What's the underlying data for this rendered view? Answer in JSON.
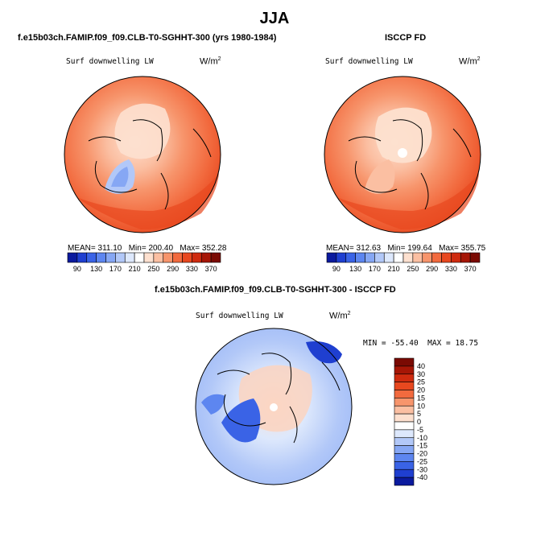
{
  "page": {
    "title": "JJA"
  },
  "chart_data": [
    {
      "type": "heatmap",
      "projection": "north-polar-stereographic",
      "title": "f.e15b03ch.FAMIP.f09_f09.CLB-T0-SGHHT-300 (yrs 1980-1984)",
      "variable": "Surf downwelling LW",
      "units": "W/m",
      "units_exponent": "2",
      "stats": {
        "mean_label": "MEAN=",
        "mean": "311.10",
        "min_label": "Min=",
        "min": "200.40",
        "max_label": "Max=",
        "max": "352.28"
      },
      "colorbar": {
        "orientation": "horizontal",
        "tick_labels": [
          "90",
          "130",
          "170",
          "210",
          "250",
          "290",
          "330",
          "370"
        ],
        "colors": [
          "#0b1a9e",
          "#1f3fd0",
          "#3a63e6",
          "#5d86f0",
          "#86a7f4",
          "#b2c8f8",
          "#dde8fc",
          "#ffffff",
          "#fde0cf",
          "#fbbfa2",
          "#f7956c",
          "#f26a3e",
          "#e8481f",
          "#cf2b0f",
          "#a61606",
          "#7a0a03"
        ]
      }
    },
    {
      "type": "heatmap",
      "projection": "north-polar-stereographic",
      "title": "ISCCP FD",
      "variable": "Surf downwelling LW",
      "units": "W/m",
      "units_exponent": "2",
      "stats": {
        "mean_label": "MEAN=",
        "mean": "312.63",
        "min_label": "Min=",
        "min": "199.64",
        "max_label": "Max=",
        "max": "355.75"
      },
      "colorbar": {
        "orientation": "horizontal",
        "tick_labels": [
          "90",
          "130",
          "170",
          "210",
          "250",
          "290",
          "330",
          "370"
        ],
        "colors": [
          "#0b1a9e",
          "#1f3fd0",
          "#3a63e6",
          "#5d86f0",
          "#86a7f4",
          "#b2c8f8",
          "#dde8fc",
          "#ffffff",
          "#fde0cf",
          "#fbbfa2",
          "#f7956c",
          "#f26a3e",
          "#e8481f",
          "#cf2b0f",
          "#a61606",
          "#7a0a03"
        ]
      }
    },
    {
      "type": "heatmap",
      "projection": "north-polar-stereographic",
      "title": "f.e15b03ch.FAMIP.f09_f09.CLB-T0-SGHHT-300 - ISCCP FD",
      "variable": "Surf downwelling LW",
      "units": "W/m",
      "units_exponent": "2",
      "stats": {
        "min_label": "MIN =",
        "min": "-55.40",
        "max_label": "MAX =",
        "max": "18.75"
      },
      "colorbar": {
        "orientation": "vertical",
        "tick_labels": [
          "40",
          "30",
          "25",
          "20",
          "15",
          "10",
          "5",
          "0",
          "-5",
          "-10",
          "-15",
          "-20",
          "-25",
          "-30",
          "-40"
        ],
        "colors": [
          "#7a0a03",
          "#a61606",
          "#cf2b0f",
          "#e8481f",
          "#f26a3e",
          "#f7956c",
          "#fbbfa2",
          "#fde0cf",
          "#ffffff",
          "#dde8fc",
          "#b2c8f8",
          "#86a7f4",
          "#5d86f0",
          "#3a63e6",
          "#1f3fd0",
          "#0b1a9e"
        ]
      }
    }
  ]
}
